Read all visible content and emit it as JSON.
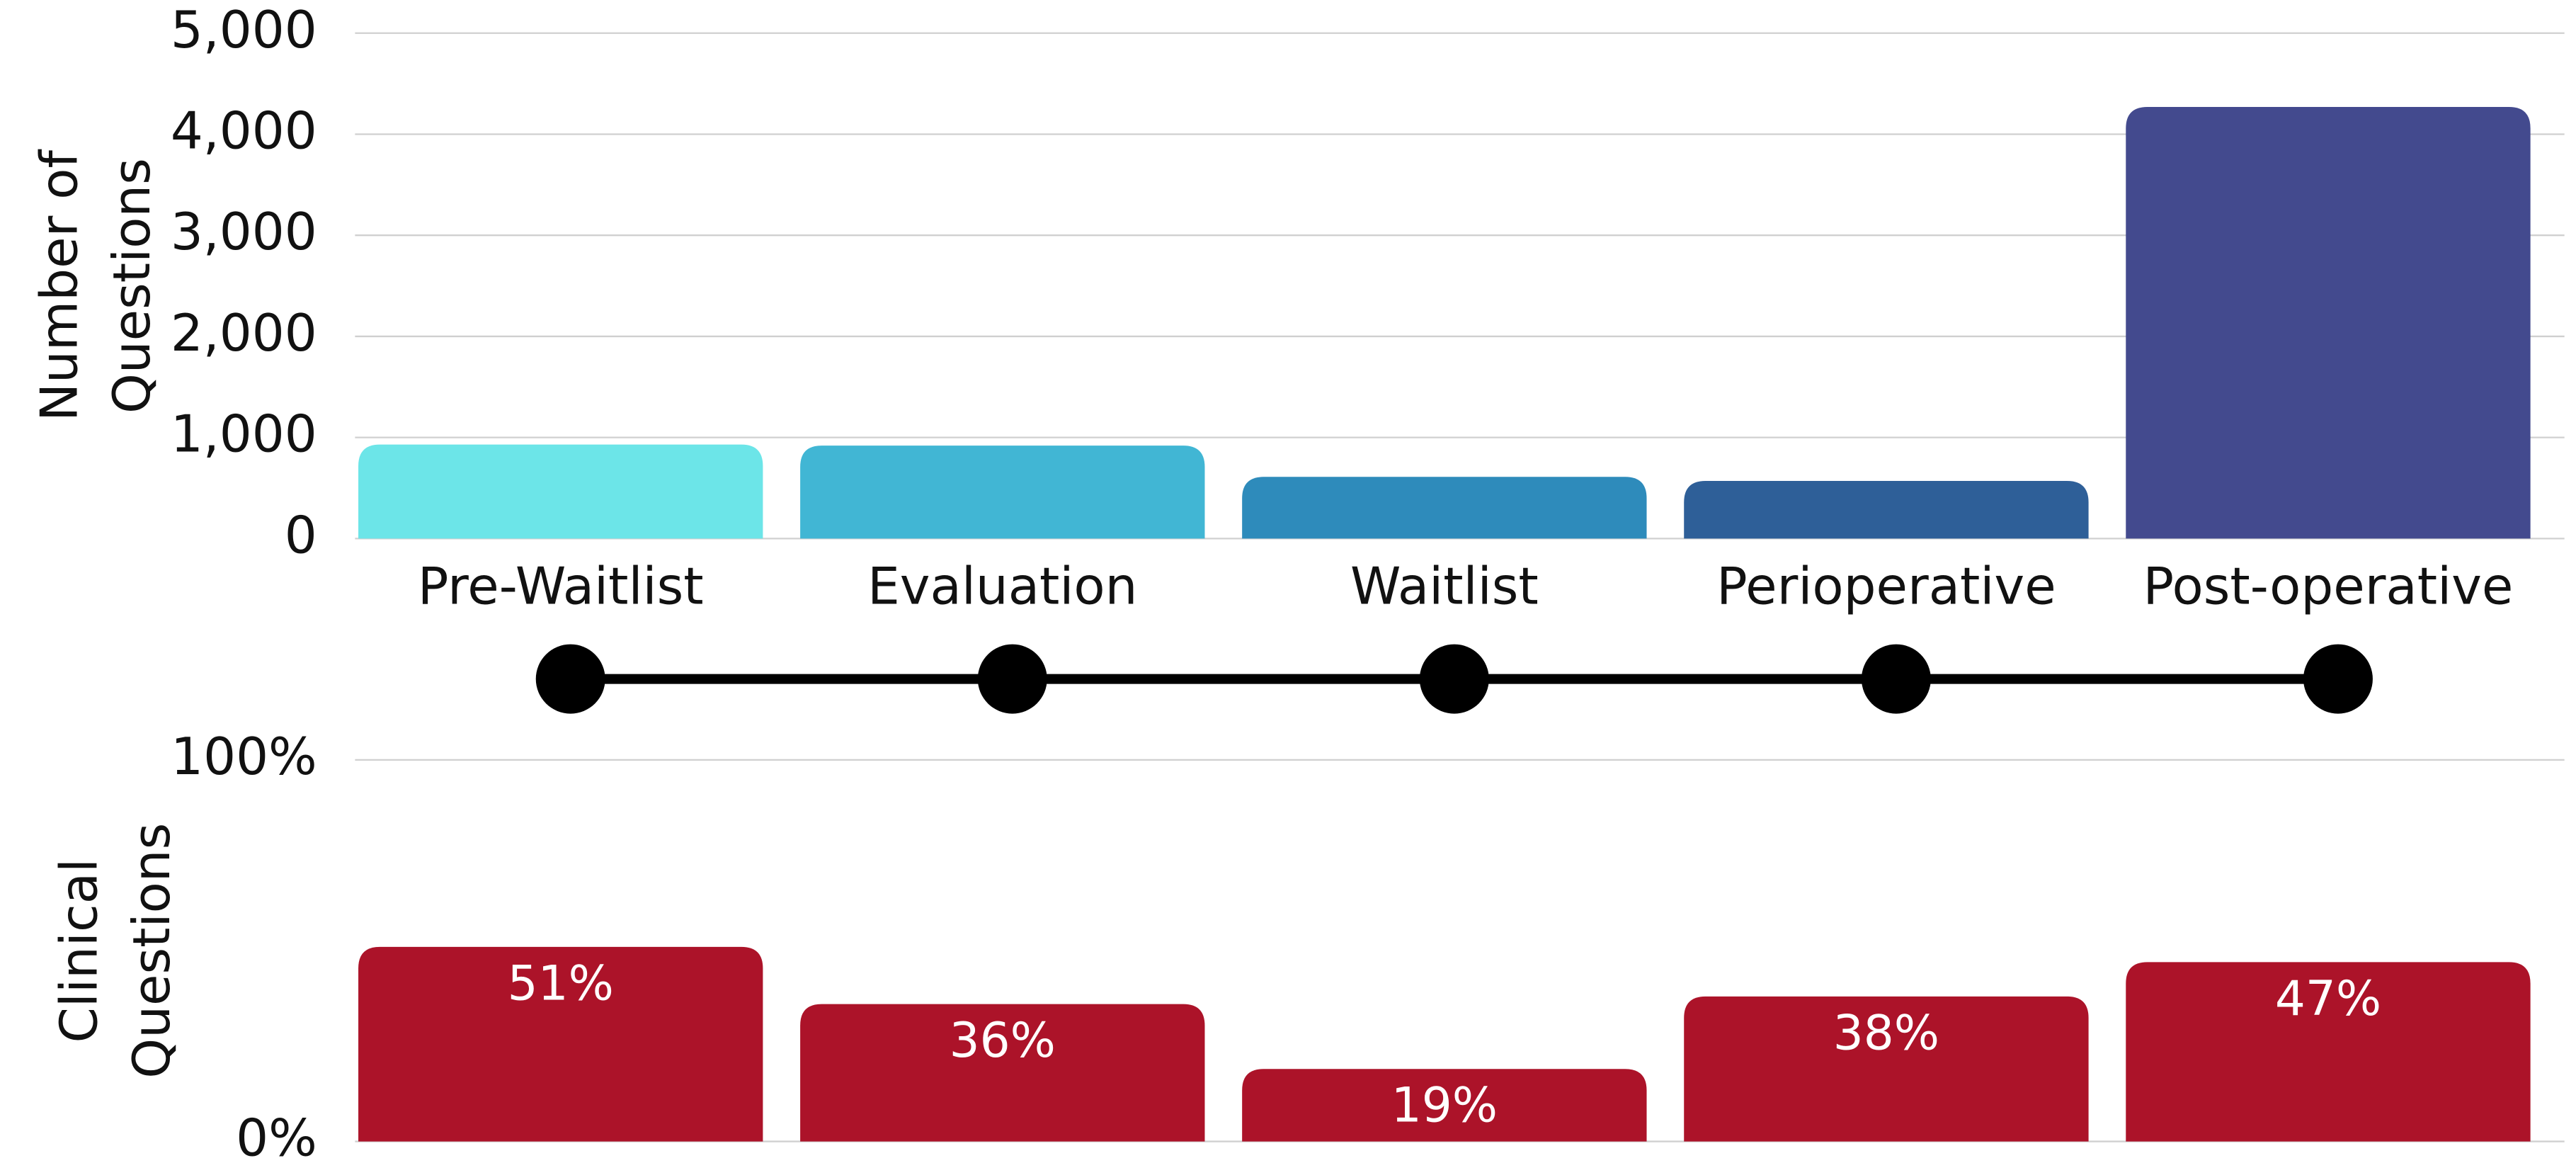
{
  "chart_data": [
    {
      "type": "bar",
      "ylabel": [
        "Number of",
        "Questions"
      ],
      "categories": [
        "Pre-Waitlist",
        "Evaluation",
        "Waitlist",
        "Perioperative",
        "Post-operative"
      ],
      "values": [
        930,
        920,
        610,
        570,
        4270
      ],
      "colors": [
        "#6ce5e8",
        "#41b6d4",
        "#2e8bbb",
        "#2e5f98",
        "#434a8e"
      ],
      "ylim": [
        0,
        5000
      ],
      "yticks": [
        0,
        {
          "value": 1000,
          "label": "1,000"
        },
        {
          "value": 2000,
          "label": "2,000"
        },
        {
          "value": 3000,
          "label": "3,000"
        },
        {
          "value": 4000,
          "label": "4,000"
        },
        {
          "value": 5000,
          "label": "5,000"
        }
      ],
      "grid": true
    },
    {
      "type": "bar",
      "ylabel": [
        "Clinical",
        "Questions"
      ],
      "values": [
        51,
        36,
        19,
        38,
        47
      ],
      "value_labels": [
        "51%",
        "36%",
        "19%",
        "38%",
        "47%"
      ],
      "color": "#ac1329",
      "ylim": [
        0,
        100
      ],
      "yticks": [
        {
          "value": 0,
          "label": "0%"
        },
        {
          "value": 100,
          "label": "100%"
        }
      ],
      "grid": true
    }
  ]
}
